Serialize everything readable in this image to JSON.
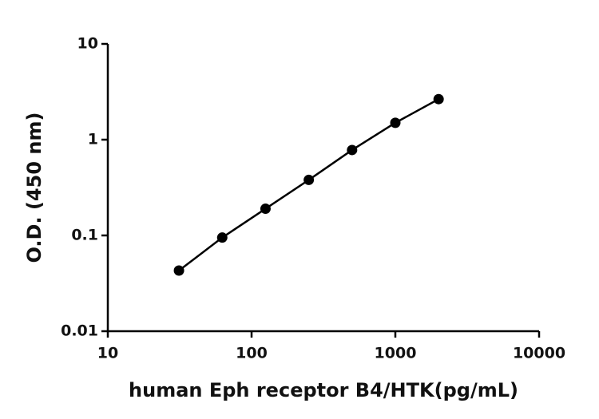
{
  "chart_data": {
    "type": "line",
    "xlabel": "human Eph receptor B4/HTK(pg/mL)",
    "ylabel": "O.D. (450 nm)",
    "x": [
      31.25,
      62.5,
      125,
      250,
      500,
      1000,
      2000
    ],
    "series": [
      {
        "color": "#000000",
        "values": [
          0.043,
          0.095,
          0.19,
          0.38,
          0.78,
          1.5,
          2.65
        ]
      }
    ],
    "xscale": "log",
    "yscale": "log",
    "xlim": [
      10,
      10000
    ],
    "xticks": [
      10,
      100,
      1000,
      10000
    ],
    "ylim": [
      0.01,
      10
    ],
    "yticks": [
      0.01,
      0.1,
      1,
      10
    ],
    "grid": false
  }
}
